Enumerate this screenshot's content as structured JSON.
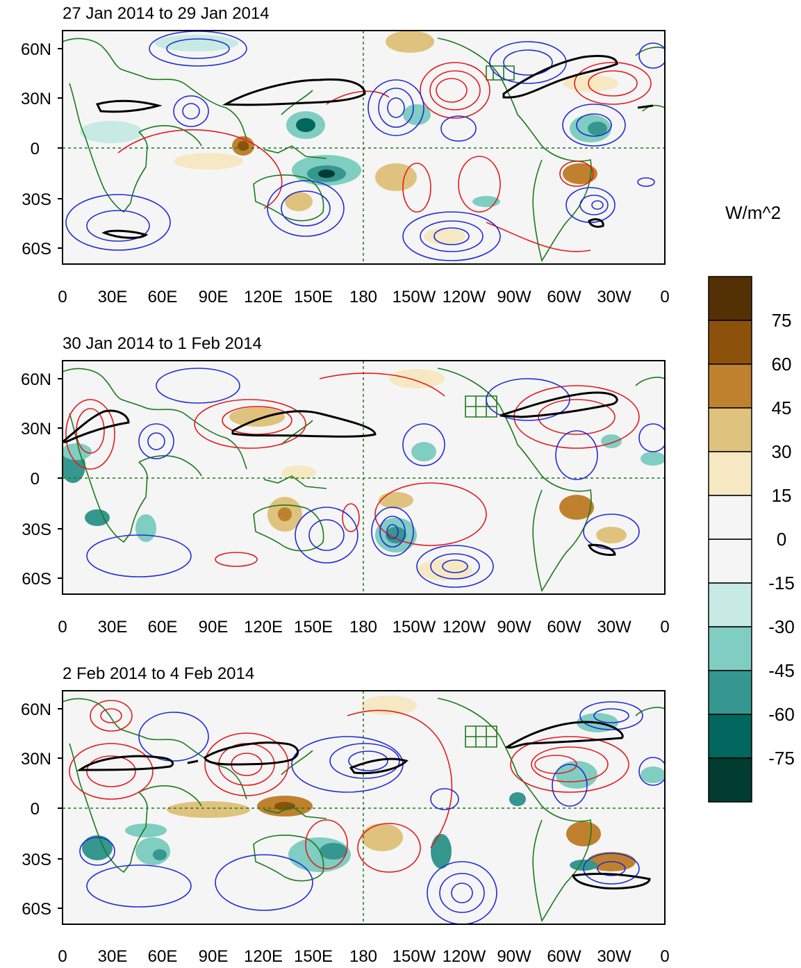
{
  "panels": [
    {
      "title": "27 Jan 2014 to 29 Jan 2014"
    },
    {
      "title": "30 Jan 2014 to 1 Feb 2014"
    },
    {
      "title": "2 Feb 2014 to 4 Feb 2014"
    }
  ],
  "lat_labels": [
    "60N",
    "30N",
    "0",
    "30S",
    "60S"
  ],
  "lon_labels": [
    "0",
    "30E",
    "60E",
    "90E",
    "120E",
    "150E",
    "180",
    "150W",
    "120W",
    "90W",
    "60W",
    "30W",
    "0"
  ],
  "colorbar": {
    "unit": "W/m^2",
    "tick_labels": [
      "75",
      "60",
      "45",
      "30",
      "15",
      "0",
      "-15",
      "-30",
      "-45",
      "-60",
      "-75"
    ],
    "colors": [
      "#543005",
      "#8c510a",
      "#bf812d",
      "#dfc27d",
      "#f6e8c3",
      "#f5f5f5",
      "#f5f5f5",
      "#c7eae5",
      "#80cdc1",
      "#35978f",
      "#01665e",
      "#003c30"
    ]
  },
  "colors": {
    "land_outline": "#1a7a1a",
    "positive_contour": "#e41a1c",
    "negative_contour": "#1f2bd6",
    "jet_contour": "#000000",
    "map_background": "#f5f5f5"
  }
}
